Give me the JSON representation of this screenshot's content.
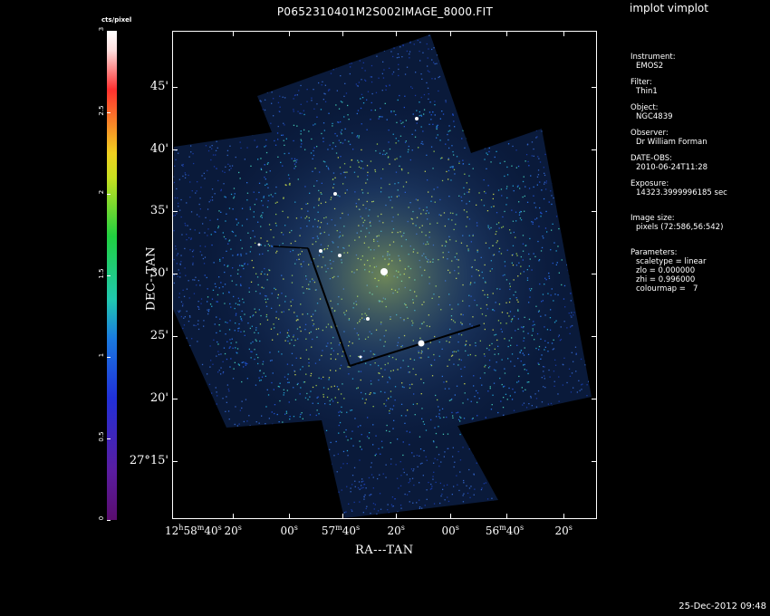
{
  "window": {
    "app_title": "implot vimplot",
    "image_title": "P0652310401M2S002IMAGE_8000.FIT",
    "timestamp": "25-Dec-2012 09:48"
  },
  "colorbar": {
    "unit_label": "cts/pixel",
    "ticks": [
      "0",
      "0.5",
      "1",
      "1.5",
      "2",
      "2.5",
      "3"
    ]
  },
  "axes": {
    "xlabel": "RA---TAN",
    "ylabel": "DEC--TAN",
    "y_ticks": [
      "45'",
      "40'",
      "35'",
      "30'",
      "25'",
      "20'",
      "27°15'"
    ],
    "x_ticks": [
      "12h58m40s",
      "20s",
      "00s",
      "57m40s",
      "20s",
      "00s",
      "56m40s",
      "20s"
    ]
  },
  "info": {
    "instrument_label": "Instrument:",
    "instrument": "EMOS2",
    "filter_label": "Filter:",
    "filter": "Thin1",
    "object_label": "Object:",
    "object": "NGC4839",
    "observer_label": "Observer:",
    "observer": "Dr William Forman",
    "date_label": "DATE-OBS:",
    "date_obs": "2010-06-24T11:28",
    "exposure_label": "Exposure:",
    "exposure": "14323.3999996185 sec",
    "image_size_label": "Image size:",
    "image_size": "pixels (72:586,56:542)",
    "parameters_label": "Parameters:",
    "scaletype": "scaletype = linear",
    "zlo": "zlo = 0.000000",
    "zhi": "zhi = 0.996000",
    "colourmap": "colourmap =   7"
  }
}
